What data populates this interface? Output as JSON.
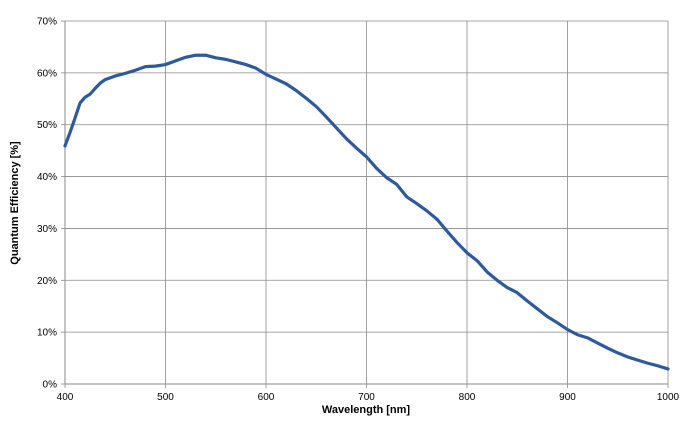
{
  "chart_data": {
    "type": "line",
    "title": "",
    "xlabel": "Wavelength [nm]",
    "ylabel": "Quantum Efficiency [%]",
    "xlim": [
      400,
      1000
    ],
    "ylim": [
      0,
      70
    ],
    "xticks": [
      400,
      500,
      600,
      700,
      800,
      900,
      1000
    ],
    "yticks": [
      0,
      10,
      20,
      30,
      40,
      50,
      60,
      70
    ],
    "x_tick_labels": [
      "400",
      "500",
      "600",
      "700",
      "800",
      "900",
      "1000"
    ],
    "y_tick_labels": [
      "0%",
      "10%",
      "20%",
      "30%",
      "40%",
      "50%",
      "60%",
      "70%"
    ],
    "grid": true,
    "legend": "none",
    "series": [
      {
        "color": "#2e5a9c",
        "x": [
          400,
          405,
          410,
          415,
          420,
          425,
          430,
          435,
          440,
          450,
          460,
          470,
          480,
          490,
          500,
          510,
          520,
          530,
          540,
          550,
          560,
          570,
          580,
          590,
          600,
          610,
          620,
          630,
          640,
          650,
          660,
          670,
          680,
          690,
          700,
          710,
          720,
          730,
          740,
          750,
          760,
          770,
          780,
          790,
          800,
          810,
          820,
          830,
          840,
          850,
          860,
          870,
          880,
          890,
          900,
          910,
          920,
          930,
          940,
          950,
          960,
          970,
          980,
          990,
          1000
        ],
        "y": [
          45.9,
          48.5,
          51.3,
          54.2,
          55.3,
          55.9,
          57.0,
          58.0,
          58.7,
          59.4,
          59.9,
          60.5,
          61.2,
          61.3,
          61.6,
          62.3,
          63.0,
          63.4,
          63.4,
          62.9,
          62.6,
          62.1,
          61.6,
          60.9,
          59.7,
          58.8,
          57.9,
          56.6,
          55.1,
          53.5,
          51.5,
          49.4,
          47.3,
          45.5,
          43.8,
          41.6,
          39.8,
          38.5,
          36.1,
          34.8,
          33.4,
          31.8,
          29.5,
          27.3,
          25.3,
          23.8,
          21.6,
          20.0,
          18.6,
          17.6,
          16.0,
          14.5,
          13.0,
          11.8,
          10.5,
          9.5,
          8.9,
          7.9,
          6.9,
          6.0,
          5.2,
          4.6,
          4.0,
          3.5,
          2.9
        ]
      }
    ]
  }
}
